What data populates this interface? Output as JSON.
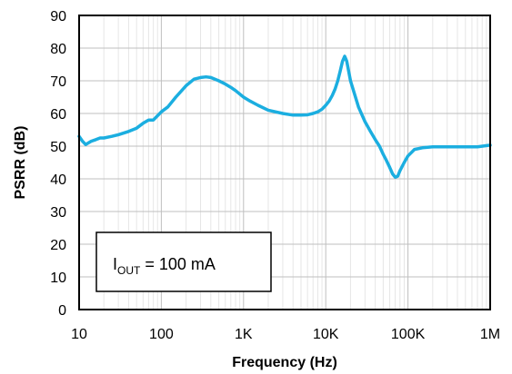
{
  "chart_data": {
    "type": "line",
    "title": "",
    "xlabel": "Frequency (Hz)",
    "ylabel": "PSRR (dB)",
    "x_scale": "log",
    "xlim": [
      10,
      1000000
    ],
    "ylim": [
      0,
      90
    ],
    "x_ticks": [
      {
        "value": 10,
        "label": "10"
      },
      {
        "value": 100,
        "label": "100"
      },
      {
        "value": 1000,
        "label": "1K"
      },
      {
        "value": 10000,
        "label": "10K"
      },
      {
        "value": 100000,
        "label": "100K"
      },
      {
        "value": 1000000,
        "label": "1M"
      }
    ],
    "y_ticks": [
      0,
      10,
      20,
      30,
      40,
      50,
      60,
      70,
      80,
      90
    ],
    "grid": true,
    "line_color": "#1BAEE0",
    "annotation": {
      "main": "I",
      "subscript": "OUT",
      "rest": " = 100 mA"
    },
    "series": [
      {
        "x": [
          10,
          11,
          12,
          14,
          16,
          18,
          20,
          25,
          30,
          40,
          50,
          60,
          70,
          80,
          100,
          120,
          150,
          200,
          250,
          300,
          350,
          400,
          500,
          600,
          700,
          800,
          1000,
          1200,
          1500,
          2000,
          3000,
          4000,
          5000,
          6000,
          7000,
          8000,
          9000,
          10000,
          11000,
          12000,
          13000,
          14000,
          15000,
          16000,
          17000,
          18000,
          20000,
          25000,
          30000,
          35000,
          40000,
          45000,
          50000,
          55000,
          60000,
          65000,
          70000,
          75000,
          80000,
          90000,
          100000,
          120000,
          150000,
          200000,
          300000,
          500000,
          700000,
          1000000
        ],
        "y": [
          53,
          51.5,
          50.5,
          51.5,
          52,
          52.5,
          52.5,
          53,
          53.5,
          54.5,
          55.5,
          57,
          58,
          58,
          60.5,
          62,
          65,
          68.5,
          70.5,
          71,
          71.2,
          71,
          70,
          69,
          68,
          67,
          65,
          63.8,
          62.5,
          61,
          60,
          59.5,
          59.5,
          59.6,
          60,
          60.5,
          61.3,
          62.5,
          63.8,
          65.5,
          67.5,
          70,
          73,
          76,
          77.5,
          76,
          70,
          62,
          57.5,
          54.5,
          52,
          50,
          47.5,
          45.5,
          43.5,
          41.5,
          40.5,
          40.8,
          42.5,
          45,
          47,
          49,
          49.5,
          49.8,
          49.8,
          49.8,
          49.8,
          50.3
        ]
      }
    ]
  }
}
